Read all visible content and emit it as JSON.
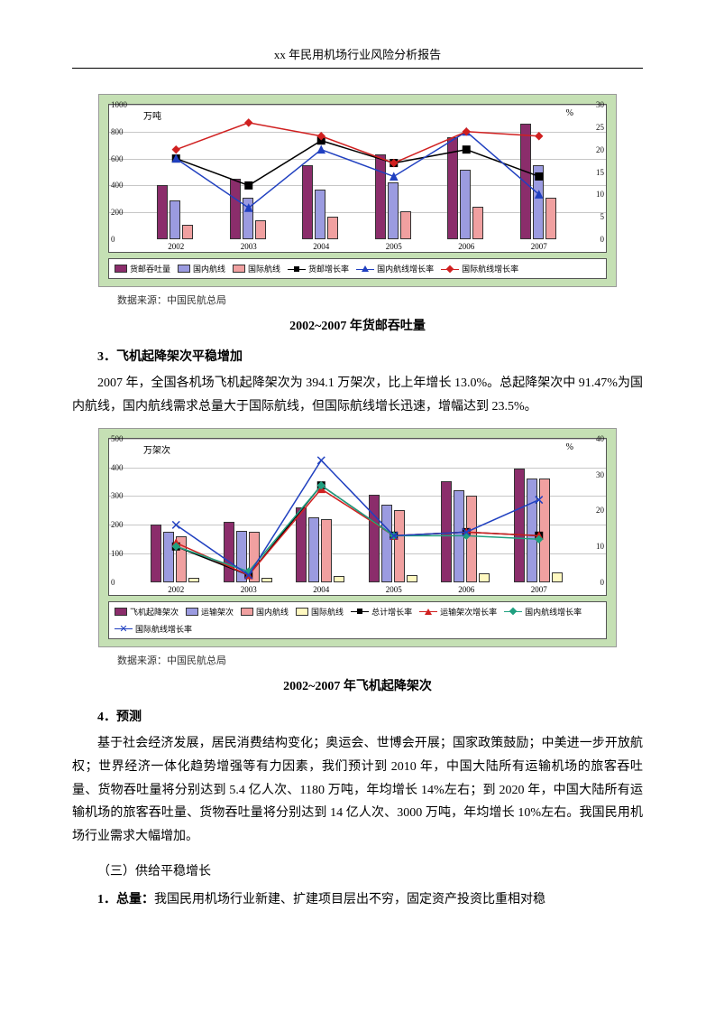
{
  "header": {
    "title": "xx 年民用机场行业风险分析报告"
  },
  "chart1": {
    "type": "bar+line",
    "left_unit": "万吨",
    "right_unit": "%",
    "ylim_left": [
      0,
      1000
    ],
    "ytick_left": [
      0,
      200,
      400,
      600,
      800,
      1000
    ],
    "ylim_right": [
      0,
      30
    ],
    "ytick_right": [
      0,
      5,
      10,
      15,
      20,
      25,
      30
    ],
    "categories": [
      "2002",
      "2003",
      "2004",
      "2005",
      "2006",
      "2007"
    ],
    "series_bars": [
      {
        "name": "货邮吞吐量",
        "color": "#8b2d6b",
        "values": [
          400,
          450,
          550,
          630,
          760,
          860
        ]
      },
      {
        "name": "国内航线",
        "color": "#9b9be0",
        "values": [
          290,
          310,
          370,
          420,
          520,
          550
        ]
      },
      {
        "name": "国际航线",
        "color": "#f0a0a0",
        "values": [
          110,
          140,
          170,
          210,
          240,
          310
        ]
      }
    ],
    "series_lines": [
      {
        "name": "货邮增长率",
        "color": "#000000",
        "marker": "square",
        "values": [
          18,
          12,
          22,
          17,
          20,
          14
        ]
      },
      {
        "name": "国内航线增长率",
        "color": "#2040c0",
        "marker": "triangle",
        "values": [
          18,
          7,
          20,
          14,
          24,
          10
        ]
      },
      {
        "name": "国际航线增长率",
        "color": "#d02020",
        "marker": "diamond",
        "values": [
          20,
          26,
          23,
          17,
          24,
          23
        ]
      }
    ],
    "background": "#c5e0b4",
    "plot_bg": "#ffffff",
    "grid_color": "#c7c7c7"
  },
  "source1": "数据来源：中国民航总局",
  "title1": "2002~2007 年货邮吞吐量",
  "section3": {
    "heading": "3．飞机起降架次平稳增加",
    "body": "2007 年，全国各机场飞机起降架次为 394.1 万架次，比上年增长 13.0%。总起降架次中 91.47%为国内航线，国内航线需求总量大于国际航线，但国际航线增长迅速，增幅达到 23.5%。"
  },
  "chart2": {
    "type": "bar+line",
    "left_unit": "万架次",
    "right_unit": "%",
    "ylim_left": [
      0,
      500
    ],
    "ytick_left": [
      0,
      100,
      200,
      300,
      400,
      500
    ],
    "ylim_right": [
      0,
      40
    ],
    "ytick_right": [
      0,
      10,
      20,
      30,
      40
    ],
    "categories": [
      "2002",
      "2003",
      "2004",
      "2005",
      "2006",
      "2007"
    ],
    "series_bars": [
      {
        "name": "飞机起降架次",
        "color": "#8b2d6b",
        "values": [
          200,
          210,
          260,
          305,
          350,
          395
        ]
      },
      {
        "name": "运输架次",
        "color": "#9b9be0",
        "values": [
          175,
          180,
          225,
          270,
          320,
          360
        ]
      },
      {
        "name": "国内航线",
        "color": "#f0a0a0",
        "values": [
          160,
          175,
          220,
          250,
          300,
          360
        ]
      },
      {
        "name": "国际航线",
        "color": "#fff8c0",
        "values": [
          15,
          15,
          20,
          25,
          30,
          35
        ]
      }
    ],
    "series_lines": [
      {
        "name": "总计增长率",
        "color": "#000000",
        "marker": "square",
        "values": [
          10,
          2,
          27,
          13,
          14,
          13
        ]
      },
      {
        "name": "运输架次增长率",
        "color": "#d02020",
        "marker": "triangle",
        "values": [
          11,
          2,
          26,
          13,
          14,
          13
        ]
      },
      {
        "name": "国内航线增长率",
        "color": "#20a080",
        "marker": "diamond",
        "values": [
          10,
          3,
          27,
          13,
          13,
          12
        ]
      },
      {
        "name": "国际航线增长率",
        "color": "#2040c0",
        "marker": "star",
        "values": [
          16,
          2,
          34,
          13,
          14,
          23
        ]
      }
    ],
    "background": "#c5e0b4",
    "plot_bg": "#ffffff",
    "grid_color": "#c7c7c7"
  },
  "source2": "数据来源：中国民航总局",
  "title2": "2002~2007 年飞机起降架次",
  "section4": {
    "heading": "4．预测",
    "body": "基于社会经济发展，居民消费结构变化；奥运会、世博会开展；国家政策鼓励；中美进一步开放航权；世界经济一体化趋势增强等有力因素，我们预计到 2010 年，中国大陆所有运输机场的旅客吞吐量、货物吞吐量将分别达到 5.4 亿人次、1180 万吨，年均增长 14%左右；到 2020 年，中国大陆所有运输机场的旅客吞吐量、货物吞吐量将分别达到 14 亿人次、3000 万吨，年均增长 10%左右。我国民用机场行业需求大幅增加。"
  },
  "section_supply": {
    "heading": "（三）供给平稳增长",
    "item1_label": "1．总量：",
    "item1_body": "我国民用机场行业新建、扩建项目层出不穷，固定资产投资比重相对稳"
  }
}
